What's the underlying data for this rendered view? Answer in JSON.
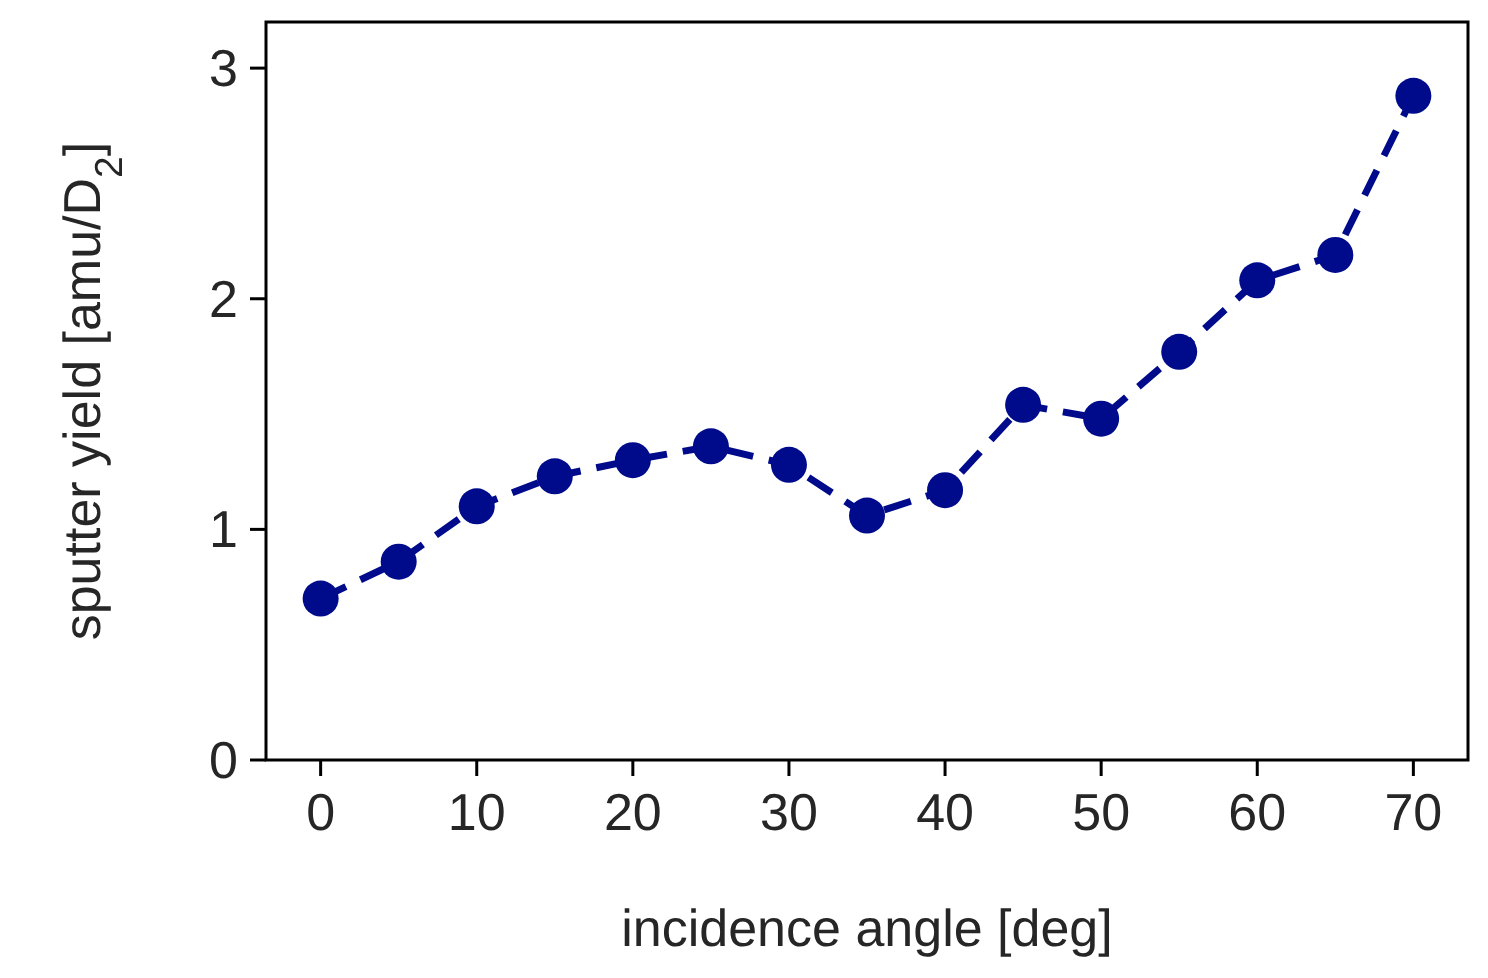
{
  "chart_data": {
    "type": "line",
    "xlabel": "incidence angle [deg]",
    "ylabel": "sputter yield [amu/D$_{2}$]",
    "x": [
      0,
      5,
      10,
      15,
      20,
      25,
      30,
      35,
      40,
      45,
      50,
      55,
      60,
      65,
      70
    ],
    "series": [
      {
        "color": "#000b8c",
        "values": [
          0.7,
          0.86,
          1.1,
          1.23,
          1.3,
          1.36,
          1.28,
          1.06,
          1.17,
          1.54,
          1.48,
          1.77,
          2.08,
          2.19,
          2.88
        ],
        "errors": [
          0.03,
          0.03,
          0.03,
          0.03,
          0.03,
          0.03,
          0.03,
          0.03,
          0.03,
          0.03,
          0.03,
          0.03,
          0.03,
          0.03,
          0.03
        ]
      }
    ],
    "xlim": [
      -3.5,
      73.5
    ],
    "xticks": [
      0,
      10,
      20,
      30,
      40,
      50,
      60,
      70
    ],
    "ylim": [
      0,
      3.2
    ],
    "yticks": [
      0,
      1,
      2,
      3
    ],
    "grid": false,
    "marker": "circle",
    "line_style": "dashed"
  }
}
